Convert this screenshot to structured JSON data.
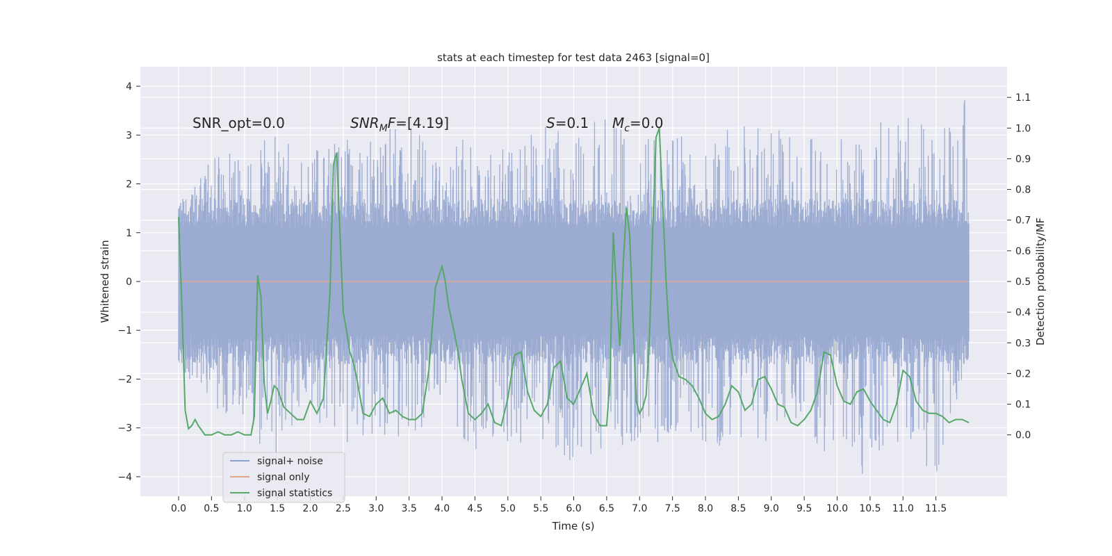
{
  "chart_data": {
    "type": "line",
    "title": "stats at each timestep for test data 2463 [signal=0]",
    "xlabel": "Time (s)",
    "ylabel_left": "Whitened strain",
    "ylabel_right": "Detection probability/MF",
    "xlim": [
      -0.58,
      12.58
    ],
    "ylim_left": [
      -4.4,
      4.4
    ],
    "ylim_right": [
      -0.2,
      1.2
    ],
    "xticks": [
      "0.0",
      "0.5",
      "1.0",
      "1.5",
      "2.0",
      "2.5",
      "3.0",
      "3.5",
      "4.0",
      "4.5",
      "5.0",
      "5.5",
      "6.0",
      "6.5",
      "7.0",
      "7.5",
      "8.0",
      "8.5",
      "9.0",
      "9.5",
      "10.0",
      "10.5",
      "11.0",
      "11.5"
    ],
    "yticks_left": [
      "4",
      "3",
      "2",
      "1",
      "0",
      "−1",
      "−2",
      "−3",
      "−4"
    ],
    "yticks_right": [
      "1.1",
      "1.0",
      "0.9",
      "0.8",
      "0.7",
      "0.6",
      "0.5",
      "0.4",
      "0.3",
      "0.2",
      "0.1",
      "0.0"
    ],
    "grid": true,
    "legend_position": "lower-left",
    "annotations": {
      "snr_opt": "SNR_opt=0.0",
      "snr_mf_main": "SNR",
      "snr_mf_sub": "M",
      "snr_mf_rest": "F=[4.19]",
      "s_var": "S",
      "s_val": "=0.1",
      "mc_var": "M",
      "mc_sub": "c",
      "mc_val": "=0.0"
    },
    "series": [
      {
        "name": "signal+ noise",
        "color": "#8da0cb",
        "description_values": "noise band centered on 0 with typical amplitude about ±1.5, extremes near +3.9 and −4.1",
        "x_range": [
          0.0,
          12.0
        ],
        "envelope_upper": [
          1.5,
          2.6,
          2.9,
          3.0,
          2.7,
          2.9,
          3.1,
          3.2,
          2.8,
          3.0,
          2.7,
          3.2,
          3.0,
          3.6,
          3.1,
          3.0,
          2.9,
          3.3,
          3.2,
          3.0,
          2.9,
          3.2,
          3.4,
          3.1,
          3.9
        ],
        "envelope_lower": [
          -1.7,
          -2.6,
          -3.0,
          -3.7,
          -2.8,
          -3.4,
          -3.3,
          -3.2,
          -3.0,
          -3.5,
          -3.3,
          -3.6,
          -3.7,
          -3.5,
          -3.4,
          -3.2,
          -3.3,
          -3.5,
          -3.3,
          -3.4,
          -3.6,
          -4.1,
          -3.3,
          -4.0,
          -1.6
        ]
      },
      {
        "name": "signal only",
        "color": "#e5a58a",
        "x": [
          0.0,
          12.0
        ],
        "y": [
          0.0,
          0.0
        ]
      },
      {
        "name": "signal statistics",
        "color": "#55a868",
        "axis": "right",
        "x": [
          0.0,
          0.05,
          0.1,
          0.15,
          0.2,
          0.25,
          0.3,
          0.4,
          0.5,
          0.6,
          0.7,
          0.8,
          0.9,
          1.0,
          1.1,
          1.15,
          1.2,
          1.25,
          1.3,
          1.35,
          1.4,
          1.45,
          1.5,
          1.6,
          1.7,
          1.8,
          1.9,
          2.0,
          2.1,
          2.2,
          2.3,
          2.35,
          2.4,
          2.45,
          2.5,
          2.55,
          2.6,
          2.65,
          2.7,
          2.8,
          2.9,
          3.0,
          3.1,
          3.2,
          3.3,
          3.4,
          3.5,
          3.6,
          3.7,
          3.8,
          3.9,
          4.0,
          4.05,
          4.1,
          4.15,
          4.2,
          4.25,
          4.3,
          4.4,
          4.5,
          4.6,
          4.7,
          4.8,
          4.9,
          5.0,
          5.1,
          5.2,
          5.3,
          5.4,
          5.5,
          5.6,
          5.7,
          5.8,
          5.9,
          6.0,
          6.1,
          6.2,
          6.3,
          6.4,
          6.5,
          6.55,
          6.6,
          6.65,
          6.7,
          6.75,
          6.8,
          6.85,
          6.9,
          6.95,
          7.0,
          7.05,
          7.1,
          7.15,
          7.2,
          7.25,
          7.3,
          7.35,
          7.4,
          7.45,
          7.5,
          7.6,
          7.7,
          7.8,
          7.9,
          8.0,
          8.1,
          8.2,
          8.3,
          8.4,
          8.5,
          8.6,
          8.7,
          8.8,
          8.9,
          9.0,
          9.1,
          9.2,
          9.3,
          9.4,
          9.5,
          9.6,
          9.7,
          9.8,
          9.9,
          10.0,
          10.1,
          10.2,
          10.3,
          10.4,
          10.5,
          10.6,
          10.7,
          10.8,
          10.9,
          11.0,
          11.1,
          11.2,
          11.3,
          11.4,
          11.5,
          11.6,
          11.7,
          11.8,
          11.9,
          12.0
        ],
        "y": [
          0.71,
          0.42,
          0.08,
          0.02,
          0.03,
          0.05,
          0.03,
          0.0,
          0.0,
          0.01,
          0.0,
          0.0,
          0.01,
          0.0,
          0.0,
          0.06,
          0.52,
          0.45,
          0.17,
          0.07,
          0.11,
          0.16,
          0.15,
          0.09,
          0.07,
          0.05,
          0.05,
          0.11,
          0.07,
          0.12,
          0.47,
          0.88,
          0.92,
          0.66,
          0.4,
          0.34,
          0.27,
          0.24,
          0.19,
          0.07,
          0.06,
          0.1,
          0.12,
          0.07,
          0.08,
          0.06,
          0.05,
          0.05,
          0.07,
          0.21,
          0.48,
          0.55,
          0.5,
          0.42,
          0.37,
          0.32,
          0.26,
          0.18,
          0.07,
          0.05,
          0.07,
          0.1,
          0.04,
          0.03,
          0.12,
          0.26,
          0.27,
          0.14,
          0.08,
          0.06,
          0.1,
          0.22,
          0.24,
          0.12,
          0.1,
          0.15,
          0.2,
          0.07,
          0.03,
          0.03,
          0.18,
          0.66,
          0.47,
          0.29,
          0.55,
          0.74,
          0.65,
          0.37,
          0.11,
          0.07,
          0.09,
          0.13,
          0.32,
          0.67,
          0.97,
          1.0,
          0.76,
          0.51,
          0.33,
          0.25,
          0.19,
          0.18,
          0.16,
          0.12,
          0.07,
          0.05,
          0.06,
          0.1,
          0.16,
          0.14,
          0.08,
          0.1,
          0.18,
          0.19,
          0.15,
          0.1,
          0.09,
          0.04,
          0.03,
          0.05,
          0.08,
          0.14,
          0.27,
          0.26,
          0.16,
          0.11,
          0.1,
          0.14,
          0.15,
          0.11,
          0.08,
          0.05,
          0.04,
          0.1,
          0.21,
          0.19,
          0.11,
          0.08,
          0.07,
          0.07,
          0.06,
          0.04,
          0.05,
          0.05,
          0.04
        ]
      }
    ]
  }
}
